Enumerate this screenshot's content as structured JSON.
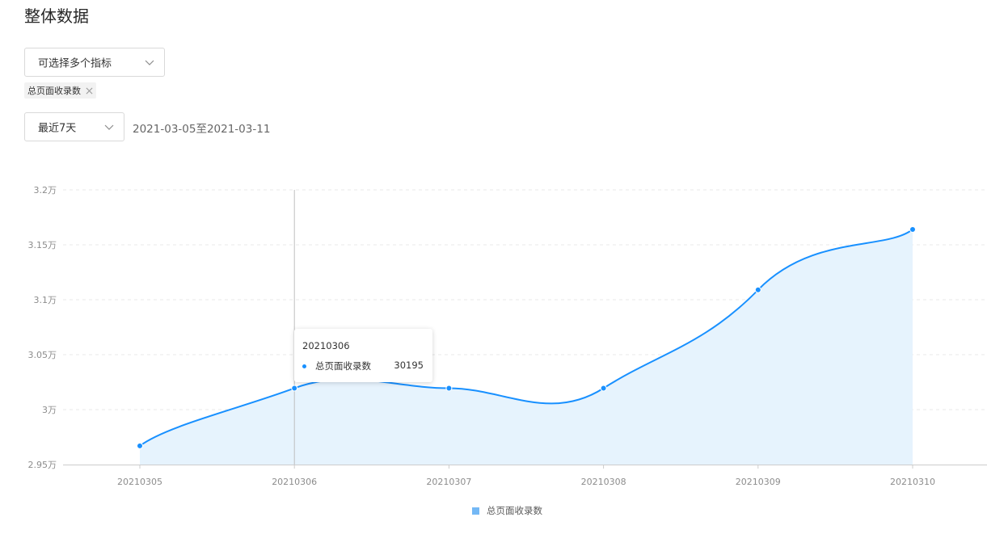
{
  "page": {
    "title": "整体数据"
  },
  "filters": {
    "metric_select": {
      "placeholder": "可选择多个指标",
      "icon": "chevron-down-icon"
    },
    "selected_tags": [
      {
        "label": "总页面收录数",
        "icon": "close-icon"
      }
    ],
    "range_select": {
      "value": "最近7天",
      "icon": "chevron-down-icon"
    },
    "date_range": "2021-03-05至2021-03-11"
  },
  "colors": {
    "line": "#1890ff",
    "area": "#e6f3fd",
    "legend_swatch": "#74b8f5",
    "axis": "#cccccc",
    "grid": "#e8e8e8"
  },
  "tooltip": {
    "title": "20210306",
    "series": "总页面收录数",
    "value": "30195"
  },
  "chart_data": {
    "type": "area",
    "categories": [
      "20210305",
      "20210306",
      "20210307",
      "20210308",
      "20210309",
      "20210310"
    ],
    "series": [
      {
        "name": "总页面收录数",
        "values": [
          29670,
          30195,
          30195,
          30195,
          31090,
          31640
        ]
      }
    ],
    "yticks": [
      "2.95万",
      "3万",
      "3.05万",
      "3.1万",
      "3.15万",
      "3.2万"
    ],
    "ylim": [
      29500,
      32000
    ],
    "grid": true,
    "legend": "bottom-center",
    "smooth": true,
    "crosshair_category": "20210306"
  }
}
